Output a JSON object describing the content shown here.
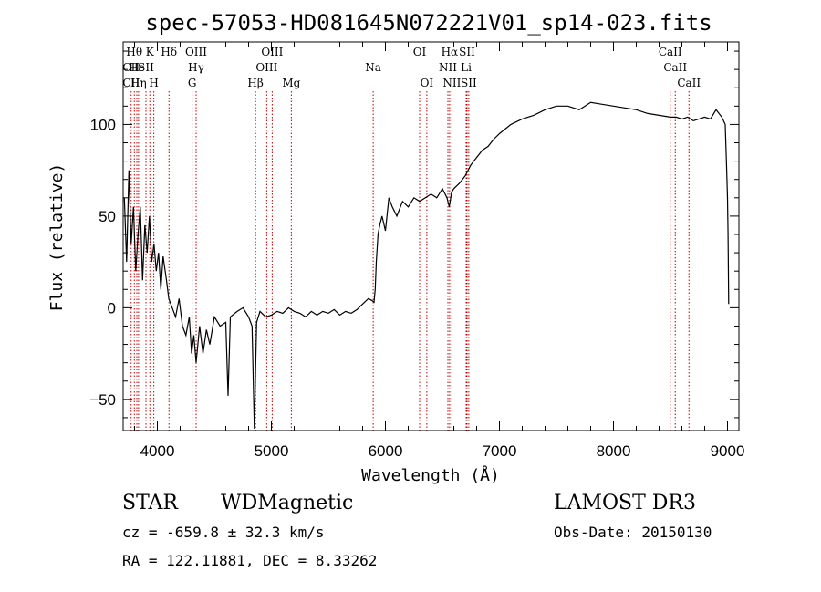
{
  "chart_data": {
    "type": "line",
    "title": "spec-57053-HD081645N072221V01_sp14-023.fits",
    "xlabel": "Wavelength (Å)",
    "ylabel": "Flux (relative)",
    "xlim": [
      3700,
      9100
    ],
    "ylim": [
      -67,
      145
    ],
    "x_ticks": [
      4000,
      5000,
      6000,
      7000,
      8000,
      9000
    ],
    "y_ticks": [
      -50,
      0,
      50,
      100
    ],
    "grid": false,
    "series": [
      {
        "color": "#000000",
        "x": [
          3710,
          3730,
          3750,
          3770,
          3790,
          3810,
          3830,
          3850,
          3870,
          3890,
          3910,
          3930,
          3950,
          3970,
          3990,
          4010,
          4030,
          4050,
          4080,
          4100,
          4130,
          4160,
          4190,
          4220,
          4250,
          4280,
          4300,
          4320,
          4340,
          4370,
          4400,
          4430,
          4460,
          4500,
          4550,
          4600,
          4620,
          4640,
          4700,
          4750,
          4800,
          4830,
          4850,
          4870,
          4900,
          4950,
          5000,
          5050,
          5100,
          5150,
          5200,
          5250,
          5300,
          5350,
          5400,
          5450,
          5500,
          5550,
          5600,
          5650,
          5700,
          5750,
          5800,
          5850,
          5880,
          5900,
          5910,
          5920,
          5935,
          5950,
          5970,
          6000,
          6030,
          6060,
          6100,
          6150,
          6200,
          6250,
          6300,
          6350,
          6400,
          6450,
          6500,
          6540,
          6560,
          6580,
          6600,
          6650,
          6700,
          6750,
          6800,
          6850,
          6900,
          6950,
          7000,
          7100,
          7200,
          7300,
          7400,
          7500,
          7600,
          7700,
          7800,
          7900,
          8000,
          8100,
          8200,
          8300,
          8400,
          8500,
          8550,
          8600,
          8650,
          8700,
          8750,
          8800,
          8850,
          8900,
          8950,
          8980,
          8990,
          9000,
          9005,
          9010
        ],
        "values": [
          60,
          25,
          75,
          35,
          55,
          20,
          40,
          55,
          15,
          45,
          30,
          50,
          25,
          35,
          20,
          30,
          10,
          28,
          15,
          5,
          0,
          -5,
          5,
          -10,
          -15,
          -5,
          -25,
          -15,
          -30,
          -10,
          -25,
          -12,
          -20,
          -5,
          -10,
          -8,
          -48,
          -5,
          -2,
          0,
          -5,
          -10,
          -66,
          -8,
          -2,
          -5,
          -4,
          -2,
          -3,
          0,
          -2,
          -3,
          -5,
          -2,
          -4,
          -2,
          -3,
          -1,
          -4,
          -2,
          -3,
          -1,
          2,
          5,
          4,
          3,
          10,
          25,
          40,
          45,
          50,
          42,
          60,
          55,
          50,
          58,
          55,
          60,
          58,
          60,
          62,
          60,
          65,
          60,
          55,
          63,
          65,
          68,
          72,
          78,
          82,
          86,
          88,
          92,
          95,
          100,
          103,
          105,
          108,
          110,
          110,
          108,
          112,
          111,
          110,
          109,
          108,
          106,
          105,
          104,
          104,
          103,
          104,
          102,
          103,
          104,
          103,
          108,
          104,
          100,
          80,
          60,
          40,
          2
        ]
      }
    ],
    "line_markers": [
      {
        "label": "Hθ",
        "x": 3798,
        "row": 1
      },
      {
        "label": "CII",
        "x": 3770,
        "row": 2
      },
      {
        "label": "CII",
        "x": 3770,
        "row": 3
      },
      {
        "label": "He",
        "x": 3820,
        "row": 2
      },
      {
        "label": "Hη",
        "x": 3835,
        "row": 3
      },
      {
        "label": "K",
        "x": 3934,
        "row": 1
      },
      {
        "label": "SII",
        "x": 3900,
        "row": 2
      },
      {
        "label": "H",
        "x": 3969,
        "row": 3
      },
      {
        "label": "Hδ",
        "x": 4102,
        "row": 1
      },
      {
        "label": "OIII",
        "x": 4340,
        "row": 1
      },
      {
        "label": "Hγ",
        "x": 4340,
        "row": 2
      },
      {
        "label": "G",
        "x": 4305,
        "row": 3
      },
      {
        "label": "Hβ",
        "x": 4861,
        "row": 3
      },
      {
        "label": "OIII",
        "x": 5007,
        "row": 1
      },
      {
        "label": "OIII",
        "x": 4959,
        "row": 2
      },
      {
        "label": "Mg",
        "x": 5175,
        "row": 3
      },
      {
        "label": "Na",
        "x": 5893,
        "row": 2
      },
      {
        "label": "OI",
        "x": 6300,
        "row": 1
      },
      {
        "label": "OI",
        "x": 6363,
        "row": 3
      },
      {
        "label": "Hα",
        "x": 6563,
        "row": 1
      },
      {
        "label": "NII",
        "x": 6548,
        "row": 2
      },
      {
        "label": "NII",
        "x": 6583,
        "row": 3
      },
      {
        "label": "SII",
        "x": 6716,
        "row": 1
      },
      {
        "label": "Li",
        "x": 6708,
        "row": 2
      },
      {
        "label": "SII",
        "x": 6731,
        "row": 3
      },
      {
        "label": "CaII",
        "x": 8498,
        "row": 1
      },
      {
        "label": "CaII",
        "x": 8542,
        "row": 2
      },
      {
        "label": "CaII",
        "x": 8662,
        "row": 3
      }
    ]
  },
  "info": {
    "class": "STAR",
    "subclass": "WDMagnetic",
    "survey": "LAMOST DR3",
    "cz": "cz = -659.8 ± 32.3 km/s",
    "obs_date": "Obs-Date: 20150130",
    "radec": "RA = 122.11881, DEC =   8.33262"
  }
}
